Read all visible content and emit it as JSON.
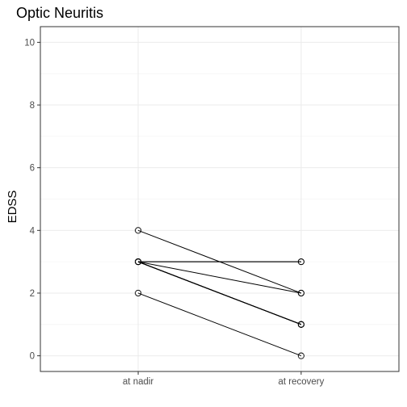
{
  "chart_data": {
    "type": "line",
    "title": "Optic Neuritis",
    "xlabel": "",
    "ylabel": "EDSS",
    "categories": [
      "at nadir",
      "at recovery"
    ],
    "ylim": [
      -0.5,
      10.5
    ],
    "yticks": [
      0,
      2,
      4,
      6,
      8,
      10
    ],
    "grid": true,
    "series": [
      {
        "values": [
          4,
          2
        ]
      },
      {
        "values": [
          3,
          3
        ]
      },
      {
        "values": [
          3,
          3
        ]
      },
      {
        "values": [
          3,
          2
        ]
      },
      {
        "values": [
          3,
          1
        ]
      },
      {
        "values": [
          3,
          1
        ]
      },
      {
        "values": [
          3,
          1
        ]
      },
      {
        "values": [
          3,
          1
        ]
      },
      {
        "values": [
          2,
          0
        ]
      }
    ]
  }
}
